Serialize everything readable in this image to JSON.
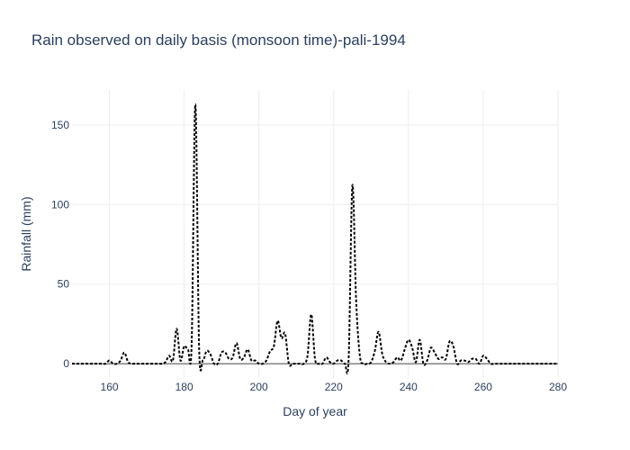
{
  "chart_data": {
    "type": "line",
    "title": "Rain observed on daily basis (monsoon time)-pali-1994",
    "xlabel": "Day of year",
    "ylabel": "Rainfall (mm)",
    "xlim": [
      150,
      280
    ],
    "ylim": [
      -9,
      172
    ],
    "xticks": [
      160,
      180,
      200,
      220,
      240,
      260,
      280
    ],
    "yticks": [
      0,
      50,
      100,
      150
    ],
    "grid": true,
    "line_style": "dotted",
    "line_color": "#000000",
    "series": [
      {
        "x": [
          150,
          151,
          152,
          153,
          154,
          155,
          156,
          157,
          158,
          159,
          160,
          161,
          162,
          163,
          164,
          165,
          166,
          167,
          168,
          169,
          170,
          171,
          172,
          173,
          174,
          175,
          176,
          177,
          178,
          179,
          180,
          181,
          182,
          183,
          184,
          185,
          186,
          187,
          188,
          189,
          190,
          191,
          192,
          193,
          194,
          195,
          196,
          197,
          198,
          199,
          200,
          201,
          202,
          203,
          204,
          205,
          206,
          207,
          208,
          209,
          210,
          211,
          212,
          213,
          214,
          215,
          216,
          217,
          218,
          219,
          220,
          221,
          222,
          223,
          224,
          225,
          226,
          227,
          228,
          229,
          230,
          231,
          232,
          233,
          234,
          235,
          236,
          237,
          238,
          239,
          240,
          241,
          242,
          243,
          244,
          245,
          246,
          247,
          248,
          249,
          250,
          251,
          252,
          253,
          254,
          255,
          256,
          257,
          258,
          259,
          260,
          261,
          262,
          263,
          264,
          265,
          266,
          267,
          268,
          269,
          270,
          271,
          272,
          273,
          274,
          275,
          276,
          277,
          278,
          279,
          280
        ],
        "values": [
          0,
          0,
          0,
          0,
          0,
          0,
          0,
          0,
          0,
          0,
          2,
          0,
          0,
          2,
          7,
          1,
          0,
          0,
          0,
          0,
          0,
          0,
          0,
          0,
          0,
          1,
          5,
          2,
          22,
          2,
          11,
          9,
          12,
          163,
          10,
          2,
          8,
          6,
          0,
          0,
          7,
          7,
          3,
          4,
          13,
          3,
          4,
          9,
          2,
          2,
          0,
          0,
          2,
          8,
          11,
          27,
          16,
          19,
          0,
          0,
          0,
          0,
          0,
          5,
          31,
          3,
          0,
          0,
          4,
          1,
          0,
          2,
          2,
          0,
          3,
          112,
          40,
          5,
          0,
          0,
          1,
          8,
          20,
          6,
          1,
          0,
          1,
          4,
          2,
          9,
          15,
          10,
          1,
          15,
          0,
          2,
          10,
          7,
          3,
          4,
          3,
          14,
          11,
          0,
          2,
          2,
          1,
          3,
          3,
          0,
          5,
          3,
          0,
          0,
          0,
          0,
          0,
          0,
          0,
          0,
          0,
          0,
          0,
          0,
          0,
          0,
          0,
          0,
          0,
          0,
          0
        ]
      }
    ]
  }
}
